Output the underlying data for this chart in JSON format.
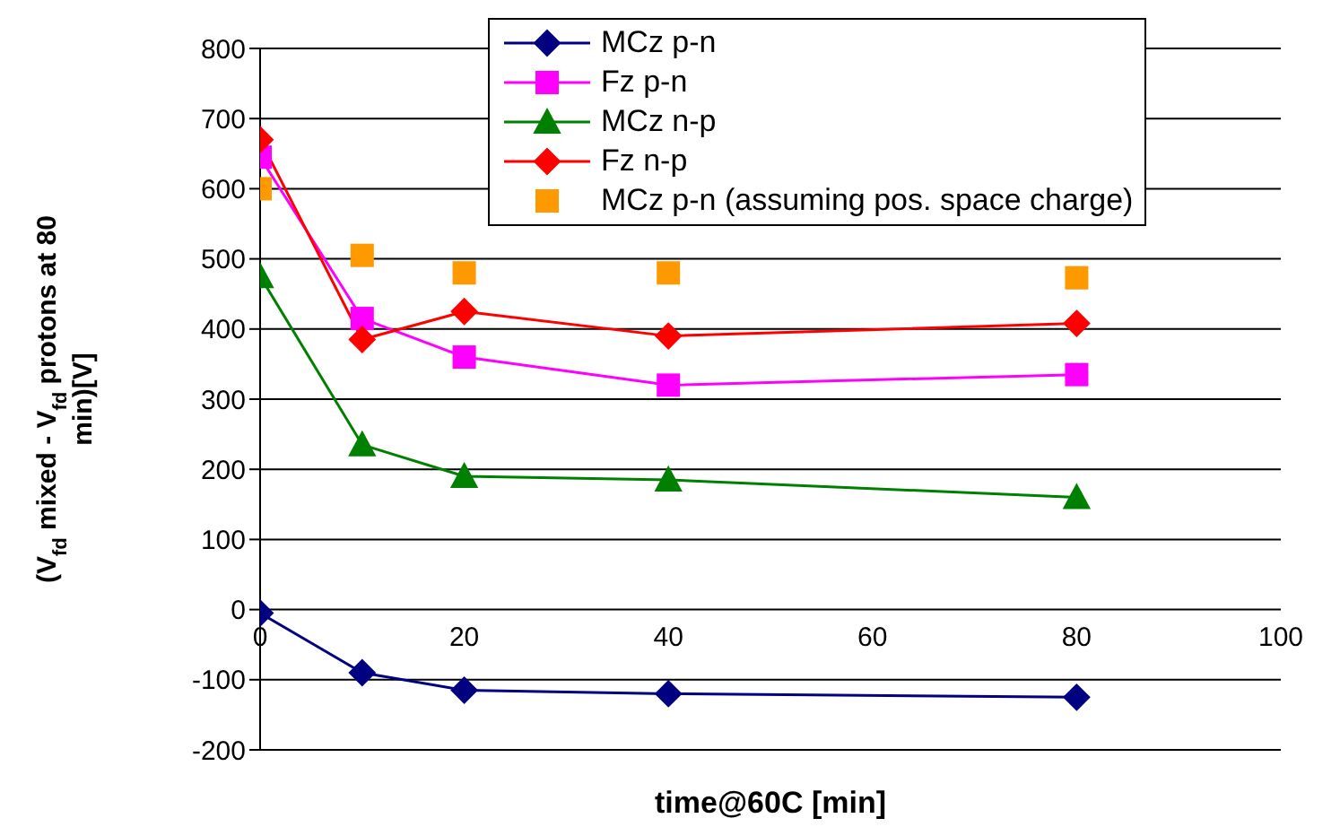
{
  "chart_data": {
    "type": "line",
    "xlabel": "time@60C [min]",
    "ylabel": "(V$_{fd}$ mixed - V$_{fd}$ protons at 80 min)[V]",
    "x": [
      0,
      10,
      20,
      40,
      80
    ],
    "series": [
      {
        "name": "MCz p-n",
        "color": "#000080",
        "marker": "diamond",
        "values": [
          -5,
          -90,
          -115,
          -120,
          -125
        ]
      },
      {
        "name": "Fz p-n",
        "color": "#ff00ff",
        "marker": "square",
        "values": [
          645,
          415,
          360,
          320,
          335
        ]
      },
      {
        "name": "MCz n-p",
        "color": "#008000",
        "marker": "triangle",
        "values": [
          475,
          235,
          190,
          185,
          160
        ]
      },
      {
        "name": "Fz n-p",
        "color": "#ff0000",
        "marker": "diamond",
        "values": [
          670,
          385,
          425,
          390,
          408
        ]
      },
      {
        "name": "MCz p-n (assuming pos. space charge)",
        "type": "scatter",
        "color": "#ff9900",
        "marker": "square",
        "values": [
          600,
          505,
          480,
          480,
          473
        ]
      }
    ],
    "xlim": [
      0,
      100
    ],
    "xticks": [
      0,
      20,
      40,
      60,
      80,
      100
    ],
    "ylim": [
      -200,
      800
    ],
    "yticks": [
      -200,
      -100,
      0,
      100,
      200,
      300,
      400,
      500,
      600,
      700,
      800
    ],
    "grid": "y",
    "legend": "top right",
    "line_style": "solid"
  }
}
